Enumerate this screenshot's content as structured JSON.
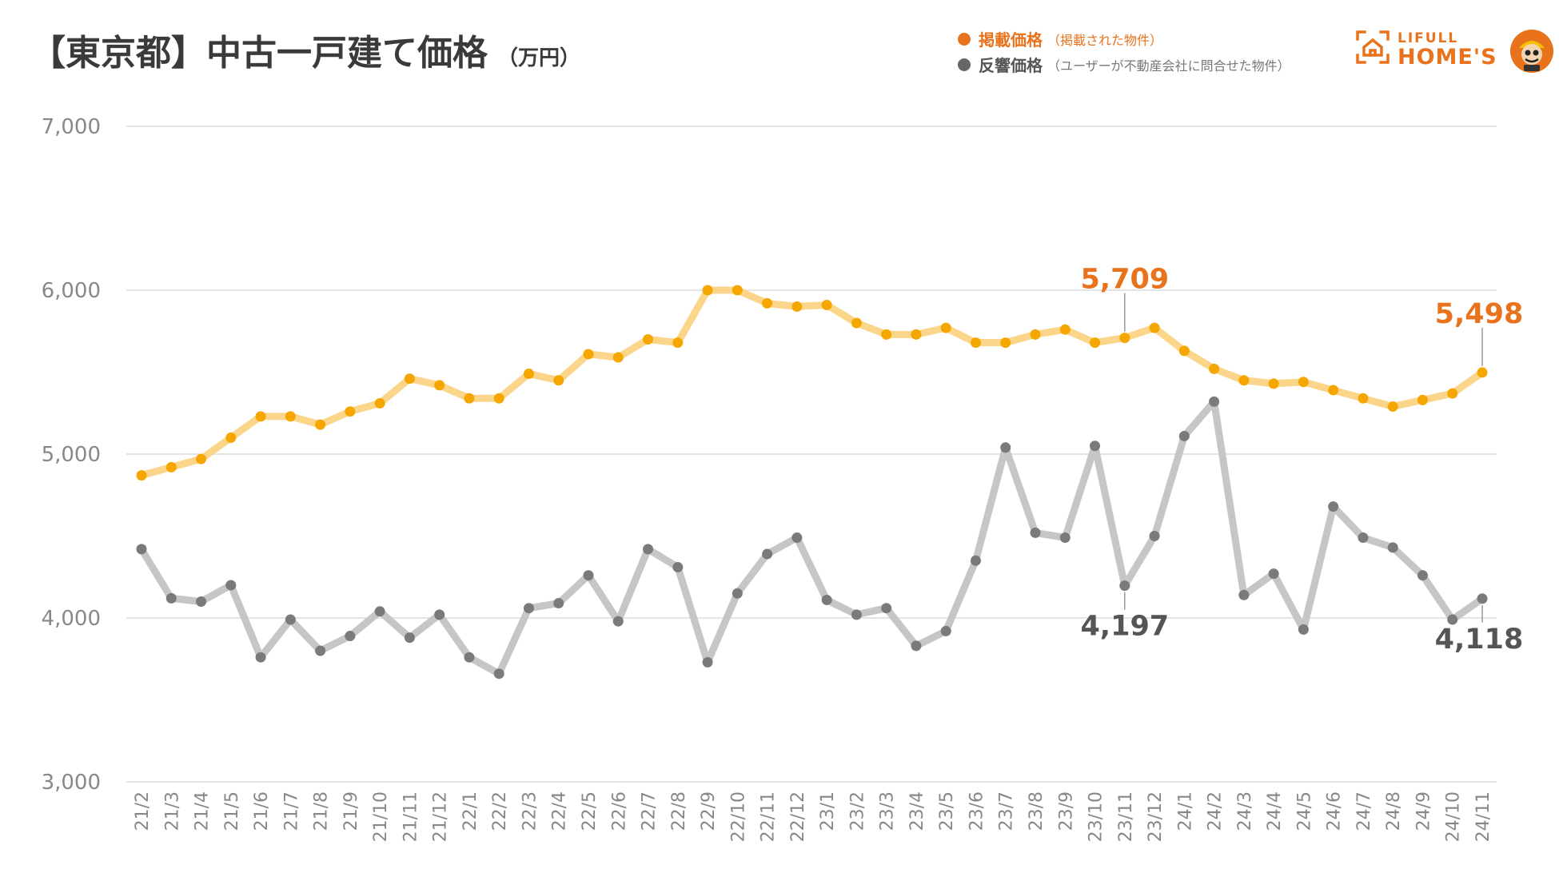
{
  "title": "【東京都】中古一戸建て価格",
  "unit": "（万円）",
  "legend": {
    "listing": {
      "name": "掲載価格",
      "desc": "（掲載された物件）"
    },
    "inquiry": {
      "name": "反響価格",
      "desc": "（ユーザーが不動産会社に問合せた物件）"
    }
  },
  "logo": {
    "small": "LIFULL",
    "large": "HOME'S"
  },
  "colors": {
    "listing_line": "#fbd58a",
    "listing_point": "#f6a600",
    "listing_label": "#e8731c",
    "inquiry_line": "#c6c6c6",
    "inquiry_point": "#7a7a7a",
    "inquiry_label": "#555555",
    "grid": "#dcdcdc"
  },
  "chart_data": {
    "type": "line",
    "categories": [
      "21/2",
      "21/3",
      "21/4",
      "21/5",
      "21/6",
      "21/7",
      "21/8",
      "21/9",
      "21/10",
      "21/11",
      "21/12",
      "22/1",
      "22/2",
      "22/3",
      "22/4",
      "22/5",
      "22/6",
      "22/7",
      "22/8",
      "22/9",
      "22/10",
      "22/11",
      "22/12",
      "23/1",
      "23/2",
      "23/3",
      "23/4",
      "23/5",
      "23/6",
      "23/7",
      "23/8",
      "23/9",
      "23/10",
      "23/11",
      "23/12",
      "24/1",
      "24/2",
      "24/3",
      "24/4",
      "24/5",
      "24/6",
      "24/7",
      "24/8",
      "24/9",
      "24/10",
      "24/11"
    ],
    "ylim": [
      3000,
      7000
    ],
    "yticks": [
      3000,
      4000,
      5000,
      6000,
      7000
    ],
    "ytick_labels": [
      "3,000",
      "4,000",
      "5,000",
      "6,000",
      "7,000"
    ],
    "grid": true,
    "series": [
      {
        "name": "掲載価格",
        "values": [
          4870,
          4920,
          4970,
          5100,
          5230,
          5230,
          5180,
          5260,
          5310,
          5460,
          5420,
          5340,
          5340,
          5490,
          5450,
          5610,
          5590,
          5700,
          5680,
          6000,
          6000,
          5920,
          5900,
          5910,
          5800,
          5730,
          5730,
          5770,
          5680,
          5680,
          5730,
          5760,
          5680,
          5709,
          5770,
          5630,
          5520,
          5450,
          5430,
          5440,
          5390,
          5340,
          5290,
          5330,
          5370,
          5498
        ]
      },
      {
        "name": "反響価格",
        "values": [
          4420,
          4120,
          4100,
          4200,
          3760,
          3990,
          3800,
          3890,
          4040,
          3880,
          4020,
          3760,
          3660,
          4060,
          4090,
          4260,
          3980,
          4420,
          4310,
          3730,
          4150,
          4390,
          4490,
          4110,
          4020,
          4060,
          3830,
          3920,
          4350,
          5040,
          4520,
          4490,
          5050,
          4197,
          4500,
          5110,
          5320,
          4140,
          4270,
          3930,
          4680,
          4490,
          4430,
          4260,
          3990,
          4118
        ]
      }
    ],
    "annotations": [
      {
        "series": 0,
        "index": 33,
        "label": "5,709"
      },
      {
        "series": 0,
        "index": 45,
        "label": "5,498"
      },
      {
        "series": 1,
        "index": 33,
        "label": "4,197"
      },
      {
        "series": 1,
        "index": 45,
        "label": "4,118"
      }
    ]
  }
}
